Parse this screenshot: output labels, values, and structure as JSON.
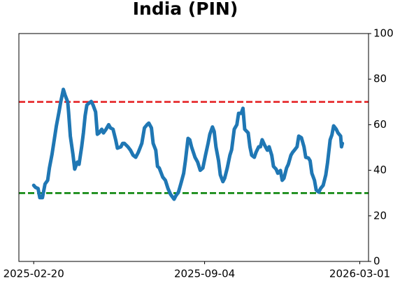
{
  "chart_data": {
    "type": "line",
    "title": "India (PIN)",
    "x": [
      "2025-02-20",
      "2025-02-22",
      "2025-02-25",
      "2025-02-27",
      "2025-03-02",
      "2025-03-05",
      "2025-03-08",
      "2025-03-10",
      "2025-03-13",
      "2025-03-15",
      "2025-03-18",
      "2025-03-21",
      "2025-03-23",
      "2025-03-26",
      "2025-03-28",
      "2025-03-31",
      "2025-04-01",
      "2025-04-03",
      "2025-04-06",
      "2025-04-08",
      "2025-04-11",
      "2025-04-13",
      "2025-04-16",
      "2025-04-18",
      "2025-04-20",
      "2025-04-22",
      "2025-04-24",
      "2025-04-27",
      "2025-04-29",
      "2025-05-02",
      "2025-05-04",
      "2025-05-06",
      "2025-05-09",
      "2025-05-11",
      "2025-05-14",
      "2025-05-17",
      "2025-05-19",
      "2025-05-22",
      "2025-05-25",
      "2025-05-27",
      "2025-05-31",
      "2025-06-02",
      "2025-06-04",
      "2025-06-08",
      "2025-06-11",
      "2025-06-14",
      "2025-06-17",
      "2025-06-20",
      "2025-06-24",
      "2025-06-27",
      "2025-06-30",
      "2025-07-02",
      "2025-07-05",
      "2025-07-07",
      "2025-07-10",
      "2025-07-12",
      "2025-07-14",
      "2025-07-18",
      "2025-07-21",
      "2025-07-24",
      "2025-07-27",
      "2025-07-31",
      "2025-08-02",
      "2025-08-05",
      "2025-08-08",
      "2025-08-11",
      "2025-08-13",
      "2025-08-16",
      "2025-08-18",
      "2025-08-20",
      "2025-08-24",
      "2025-08-27",
      "2025-08-30",
      "2025-09-02",
      "2025-09-05",
      "2025-09-08",
      "2025-09-10",
      "2025-09-13",
      "2025-09-15",
      "2025-09-17",
      "2025-09-20",
      "2025-09-22",
      "2025-09-25",
      "2025-09-27",
      "2025-09-30",
      "2025-10-03",
      "2025-10-05",
      "2025-10-08",
      "2025-10-11",
      "2025-10-13",
      "2025-10-16",
      "2025-10-18",
      "2025-10-20",
      "2025-10-24",
      "2025-10-26",
      "2025-10-28",
      "2025-10-31",
      "2025-11-02",
      "2025-11-05",
      "2025-11-07",
      "2025-11-09",
      "2025-11-12",
      "2025-11-15",
      "2025-11-17",
      "2025-11-20",
      "2025-11-22",
      "2025-11-25",
      "2025-11-27",
      "2025-11-30",
      "2025-12-02",
      "2025-12-04",
      "2025-12-07",
      "2025-12-09",
      "2025-12-12",
      "2025-12-14",
      "2025-12-16",
      "2025-12-19",
      "2025-12-21",
      "2025-12-24",
      "2025-12-27",
      "2025-12-29",
      "2026-01-01",
      "2026-01-03",
      "2026-01-05",
      "2026-01-08",
      "2026-01-10",
      "2026-01-13",
      "2026-01-15",
      "2026-01-18",
      "2026-01-21",
      "2026-01-23",
      "2026-01-26",
      "2026-01-28",
      "2026-01-30",
      "2026-02-02",
      "2026-02-04",
      "2026-02-07",
      "2026-02-08",
      "2026-02-09"
    ],
    "values": [
      33.4,
      32.5,
      32,
      28,
      28,
      34,
      35.6,
      41,
      47,
      52,
      59.5,
      65.6,
      70,
      75.5,
      73,
      70,
      65.6,
      55,
      47,
      40.5,
      43.6,
      42.6,
      50.3,
      56.4,
      64,
      68.7,
      69.3,
      70.2,
      68.7,
      65.6,
      55.8,
      56.4,
      58,
      56.4,
      58,
      60,
      58.6,
      58,
      53.4,
      49.7,
      50.3,
      51.8,
      51.8,
      50.3,
      48.8,
      46.6,
      45.7,
      47.9,
      51.8,
      58.6,
      60,
      60.7,
      58.6,
      51.8,
      48.8,
      41.7,
      41,
      37,
      35.6,
      32,
      29.4,
      27.3,
      28.8,
      30.4,
      34.4,
      38.7,
      44.2,
      54,
      53.4,
      50.3,
      45.7,
      43.6,
      40,
      41,
      46.6,
      51.8,
      55.8,
      59,
      57,
      50.3,
      44.2,
      38,
      35,
      36.5,
      41,
      46.6,
      49,
      58,
      60,
      65,
      65,
      67.2,
      58,
      56.4,
      50.3,
      46.6,
      45.7,
      47.9,
      50.3,
      50.3,
      53.4,
      50.9,
      48.8,
      50.3,
      46.6,
      41.7,
      40.5,
      38.7,
      39.9,
      35.6,
      36.5,
      41,
      42.6,
      46.6,
      47.9,
      48.8,
      50.3,
      55,
      54.3,
      50.3,
      45.7,
      45.4,
      44.2,
      38.7,
      35.6,
      31.3,
      30.4,
      32,
      33.4,
      38,
      43.3,
      53.4,
      55.5,
      59.5,
      58,
      56.4,
      55,
      50.3,
      51.8
    ],
    "color": "#1f77b4",
    "xlim": [
      "2025-02-03",
      "2026-03-11"
    ],
    "xticks": [
      "2025-02-20",
      "2025-09-04",
      "2026-03-01"
    ],
    "ylim": [
      0,
      100
    ],
    "yticks": [
      0,
      20,
      40,
      60,
      80,
      100
    ],
    "y_axis_side": "right",
    "grid": false,
    "hlines": [
      {
        "value": 70,
        "color": "#e41a1c"
      },
      {
        "value": 30,
        "color": "#008000"
      }
    ]
  }
}
